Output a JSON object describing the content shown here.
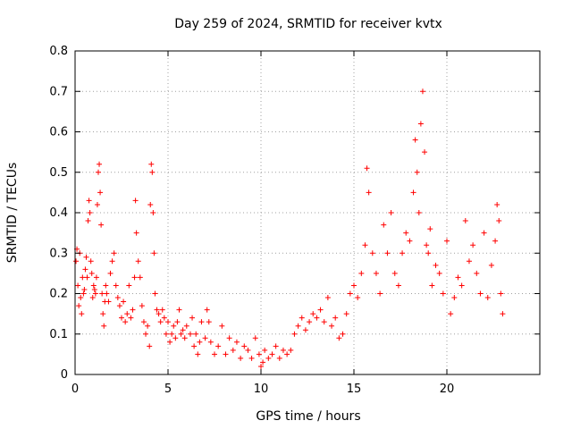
{
  "chart_data": {
    "type": "scatter",
    "title": "Day 259 of 2024, SRMTID for receiver kvtx",
    "xlabel": "GPS time / hours",
    "ylabel": "SRMTID / TECUs",
    "xlim": [
      0,
      25
    ],
    "ylim": [
      0,
      0.8
    ],
    "xticks": [
      0,
      5,
      10,
      15,
      20
    ],
    "xtick_labels": [
      "0",
      "5",
      "10",
      "15",
      "20"
    ],
    "yticks": [
      0,
      0.1,
      0.2,
      0.3,
      0.4,
      0.5,
      0.6,
      0.7,
      0.8
    ],
    "ytick_labels": [
      "0",
      "0.1",
      "0.2",
      "0.3",
      "0.4",
      "0.5",
      "0.6",
      "0.7",
      "0.8"
    ],
    "grid": true,
    "marker": "+",
    "color": "#ff0000",
    "series": [
      {
        "name": "SRMTID",
        "points": [
          [
            0.05,
            0.28
          ],
          [
            0.1,
            0.31
          ],
          [
            0.15,
            0.22
          ],
          [
            0.2,
            0.17
          ],
          [
            0.25,
            0.3
          ],
          [
            0.3,
            0.19
          ],
          [
            0.35,
            0.15
          ],
          [
            0.4,
            0.24
          ],
          [
            0.45,
            0.2
          ],
          [
            0.5,
            0.21
          ],
          [
            0.55,
            0.26
          ],
          [
            0.6,
            0.29
          ],
          [
            0.65,
            0.24
          ],
          [
            0.7,
            0.38
          ],
          [
            0.75,
            0.43
          ],
          [
            0.8,
            0.4
          ],
          [
            0.85,
            0.28
          ],
          [
            0.9,
            0.25
          ],
          [
            0.95,
            0.19
          ],
          [
            1.0,
            0.22
          ],
          [
            1.05,
            0.21
          ],
          [
            1.1,
            0.2
          ],
          [
            1.15,
            0.24
          ],
          [
            1.2,
            0.42
          ],
          [
            1.25,
            0.5
          ],
          [
            1.3,
            0.52
          ],
          [
            1.35,
            0.45
          ],
          [
            1.4,
            0.37
          ],
          [
            1.45,
            0.2
          ],
          [
            1.5,
            0.15
          ],
          [
            1.55,
            0.12
          ],
          [
            1.6,
            0.18
          ],
          [
            1.65,
            0.22
          ],
          [
            1.7,
            0.2
          ],
          [
            1.8,
            0.18
          ],
          [
            1.9,
            0.25
          ],
          [
            2.0,
            0.28
          ],
          [
            2.1,
            0.3
          ],
          [
            2.2,
            0.22
          ],
          [
            2.3,
            0.19
          ],
          [
            2.4,
            0.17
          ],
          [
            2.5,
            0.14
          ],
          [
            2.6,
            0.18
          ],
          [
            2.7,
            0.13
          ],
          [
            2.8,
            0.15
          ],
          [
            2.9,
            0.22
          ],
          [
            3.0,
            0.14
          ],
          [
            3.1,
            0.16
          ],
          [
            3.2,
            0.24
          ],
          [
            3.25,
            0.43
          ],
          [
            3.3,
            0.35
          ],
          [
            3.4,
            0.28
          ],
          [
            3.5,
            0.24
          ],
          [
            3.6,
            0.17
          ],
          [
            3.7,
            0.13
          ],
          [
            3.8,
            0.1
          ],
          [
            3.9,
            0.12
          ],
          [
            4.0,
            0.07
          ],
          [
            4.05,
            0.42
          ],
          [
            4.1,
            0.52
          ],
          [
            4.15,
            0.5
          ],
          [
            4.2,
            0.4
          ],
          [
            4.25,
            0.3
          ],
          [
            4.3,
            0.2
          ],
          [
            4.4,
            0.16
          ],
          [
            4.5,
            0.15
          ],
          [
            4.6,
            0.13
          ],
          [
            4.7,
            0.16
          ],
          [
            4.8,
            0.14
          ],
          [
            4.9,
            0.1
          ],
          [
            5.0,
            0.13
          ],
          [
            5.1,
            0.08
          ],
          [
            5.2,
            0.1
          ],
          [
            5.3,
            0.12
          ],
          [
            5.4,
            0.09
          ],
          [
            5.5,
            0.13
          ],
          [
            5.6,
            0.16
          ],
          [
            5.7,
            0.1
          ],
          [
            5.8,
            0.11
          ],
          [
            5.9,
            0.09
          ],
          [
            6.0,
            0.12
          ],
          [
            6.2,
            0.1
          ],
          [
            6.3,
            0.14
          ],
          [
            6.4,
            0.07
          ],
          [
            6.5,
            0.1
          ],
          [
            6.6,
            0.05
          ],
          [
            6.7,
            0.08
          ],
          [
            6.8,
            0.13
          ],
          [
            7.0,
            0.09
          ],
          [
            7.1,
            0.16
          ],
          [
            7.2,
            0.13
          ],
          [
            7.3,
            0.08
          ],
          [
            7.5,
            0.05
          ],
          [
            7.7,
            0.07
          ],
          [
            7.9,
            0.12
          ],
          [
            8.1,
            0.05
          ],
          [
            8.3,
            0.09
          ],
          [
            8.5,
            0.06
          ],
          [
            8.7,
            0.08
          ],
          [
            8.9,
            0.04
          ],
          [
            9.1,
            0.07
          ],
          [
            9.3,
            0.06
          ],
          [
            9.5,
            0.04
          ],
          [
            9.7,
            0.09
          ],
          [
            9.9,
            0.05
          ],
          [
            10.0,
            0.02
          ],
          [
            10.1,
            0.03
          ],
          [
            10.2,
            0.06
          ],
          [
            10.4,
            0.04
          ],
          [
            10.6,
            0.05
          ],
          [
            10.8,
            0.07
          ],
          [
            11.0,
            0.04
          ],
          [
            11.2,
            0.06
          ],
          [
            11.4,
            0.05
          ],
          [
            11.6,
            0.06
          ],
          [
            11.8,
            0.1
          ],
          [
            12.0,
            0.12
          ],
          [
            12.2,
            0.14
          ],
          [
            12.4,
            0.11
          ],
          [
            12.6,
            0.13
          ],
          [
            12.8,
            0.15
          ],
          [
            13.0,
            0.14
          ],
          [
            13.2,
            0.16
          ],
          [
            13.4,
            0.13
          ],
          [
            13.6,
            0.19
          ],
          [
            13.8,
            0.12
          ],
          [
            14.0,
            0.14
          ],
          [
            14.2,
            0.09
          ],
          [
            14.4,
            0.1
          ],
          [
            14.6,
            0.15
          ],
          [
            14.8,
            0.2
          ],
          [
            15.0,
            0.22
          ],
          [
            15.2,
            0.19
          ],
          [
            15.4,
            0.25
          ],
          [
            15.6,
            0.32
          ],
          [
            15.7,
            0.51
          ],
          [
            15.8,
            0.45
          ],
          [
            16.0,
            0.3
          ],
          [
            16.2,
            0.25
          ],
          [
            16.4,
            0.2
          ],
          [
            16.6,
            0.37
          ],
          [
            16.8,
            0.3
          ],
          [
            17.0,
            0.4
          ],
          [
            17.2,
            0.25
          ],
          [
            17.4,
            0.22
          ],
          [
            17.6,
            0.3
          ],
          [
            17.8,
            0.35
          ],
          [
            18.0,
            0.33
          ],
          [
            18.2,
            0.45
          ],
          [
            18.3,
            0.58
          ],
          [
            18.4,
            0.5
          ],
          [
            18.5,
            0.4
          ],
          [
            18.6,
            0.62
          ],
          [
            18.7,
            0.7
          ],
          [
            18.8,
            0.55
          ],
          [
            18.9,
            0.32
          ],
          [
            19.0,
            0.3
          ],
          [
            19.1,
            0.36
          ],
          [
            19.2,
            0.22
          ],
          [
            19.4,
            0.27
          ],
          [
            19.6,
            0.25
          ],
          [
            19.8,
            0.2
          ],
          [
            20.0,
            0.33
          ],
          [
            20.2,
            0.15
          ],
          [
            20.4,
            0.19
          ],
          [
            20.6,
            0.24
          ],
          [
            20.8,
            0.22
          ],
          [
            21.0,
            0.38
          ],
          [
            21.2,
            0.28
          ],
          [
            21.4,
            0.32
          ],
          [
            21.6,
            0.25
          ],
          [
            21.8,
            0.2
          ],
          [
            22.0,
            0.35
          ],
          [
            22.2,
            0.19
          ],
          [
            22.4,
            0.27
          ],
          [
            22.6,
            0.33
          ],
          [
            22.7,
            0.42
          ],
          [
            22.8,
            0.38
          ],
          [
            22.9,
            0.2
          ],
          [
            23.0,
            0.15
          ]
        ]
      }
    ]
  }
}
